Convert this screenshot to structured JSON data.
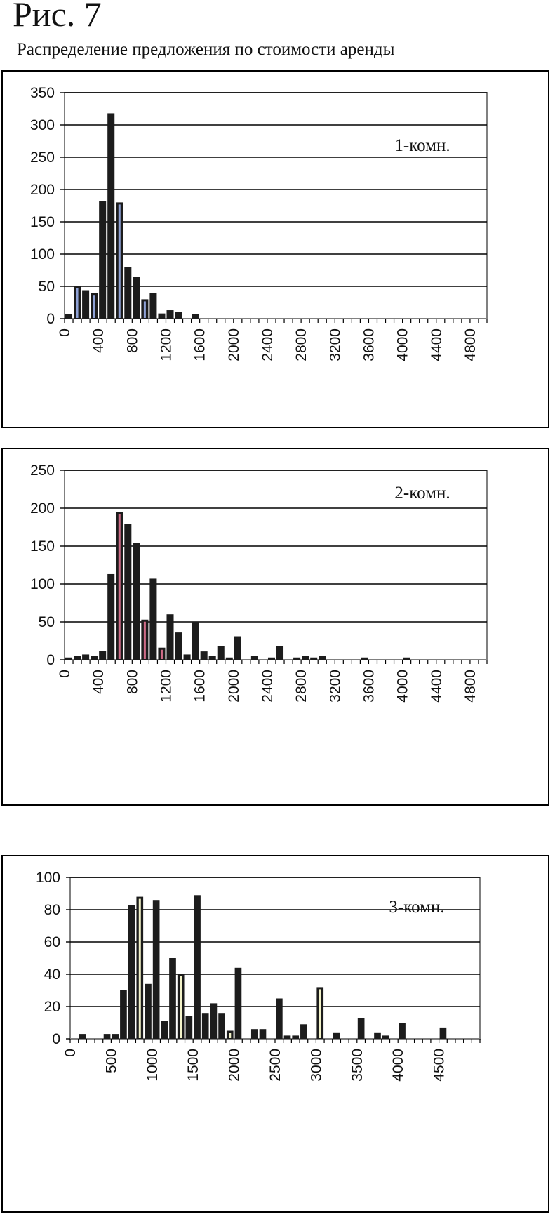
{
  "figure": {
    "label": "Рис. 7",
    "title": "Распределение предложения по стоимости аренды"
  },
  "colors": {
    "bar": "#1c1c1c",
    "grid": "#000000",
    "axis": "#808080",
    "accent_blue": "#8fa2d6",
    "accent_red": "#d06c88",
    "accent_yellow": "#f2f2c8"
  },
  "chart_data": [
    {
      "type": "bar",
      "title": "1-комн.",
      "ylim": [
        0,
        350
      ],
      "yticks": [
        "0",
        "50",
        "100",
        "150",
        "200",
        "250",
        "300",
        "350"
      ],
      "xlim": [
        0,
        5000
      ],
      "xticks": [
        "0",
        "400",
        "800",
        "1200",
        "1600",
        "2000",
        "2400",
        "2800",
        "3200",
        "3600",
        "4000",
        "4400",
        "4800"
      ],
      "grid": "horizontal",
      "bin_width": 100,
      "x": [
        0,
        100,
        200,
        300,
        400,
        500,
        600,
        700,
        800,
        900,
        1000,
        1100,
        1200,
        1300,
        1400,
        1500
      ],
      "values": [
        7,
        50,
        44,
        40,
        182,
        318,
        180,
        80,
        65,
        30,
        40,
        8,
        13,
        10,
        0,
        7
      ],
      "highlight": [
        1,
        3,
        6,
        9
      ],
      "highlight_color": "accent_blue"
    },
    {
      "type": "bar",
      "title": "2-комн.",
      "ylim": [
        0,
        250
      ],
      "yticks": [
        "0",
        "50",
        "100",
        "150",
        "200",
        "250"
      ],
      "xlim": [
        0,
        5000
      ],
      "xticks": [
        "0",
        "400",
        "800",
        "1200",
        "1600",
        "2000",
        "2400",
        "2800",
        "3200",
        "3600",
        "4000",
        "4400",
        "4800"
      ],
      "grid": "horizontal",
      "bin_width": 100,
      "x": [
        0,
        100,
        200,
        300,
        400,
        500,
        600,
        700,
        800,
        900,
        1000,
        1100,
        1200,
        1300,
        1400,
        1500,
        1600,
        1700,
        1800,
        1900,
        2000,
        2200,
        2400,
        2500,
        2700,
        2800,
        2900,
        3000,
        3500,
        4000
      ],
      "values": [
        3,
        5,
        7,
        5,
        12,
        113,
        195,
        179,
        154,
        53,
        107,
        16,
        60,
        36,
        7,
        50,
        11,
        5,
        18,
        3,
        31,
        5,
        3,
        18,
        3,
        5,
        3,
        5,
        3,
        3
      ],
      "highlight": [
        6,
        9,
        11
      ],
      "highlight_color": "accent_red"
    },
    {
      "type": "bar",
      "title": "3-комн.",
      "ylim": [
        0,
        100
      ],
      "yticks": [
        "0",
        "20",
        "40",
        "60",
        "80",
        "100"
      ],
      "xlim": [
        0,
        5000
      ],
      "xticks": [
        "0",
        "500",
        "1000",
        "1500",
        "2000",
        "2500",
        "3000",
        "3500",
        "4000",
        "4500"
      ],
      "grid": "horizontal",
      "bin_width": 100,
      "x": [
        100,
        400,
        500,
        600,
        700,
        800,
        900,
        1000,
        1100,
        1200,
        1300,
        1400,
        1500,
        1600,
        1700,
        1800,
        1900,
        2000,
        2200,
        2300,
        2500,
        2600,
        2700,
        2800,
        3000,
        3200,
        3500,
        3700,
        3800,
        4000,
        4500
      ],
      "values": [
        3,
        3,
        3,
        30,
        83,
        88,
        34,
        86,
        11,
        50,
        40,
        14,
        89,
        16,
        22,
        16,
        5,
        44,
        6,
        6,
        25,
        2,
        2,
        9,
        32,
        4,
        13,
        4,
        2,
        10,
        7
      ],
      "highlight": [
        5,
        10,
        16,
        24
      ],
      "highlight_color": "accent_yellow"
    }
  ]
}
